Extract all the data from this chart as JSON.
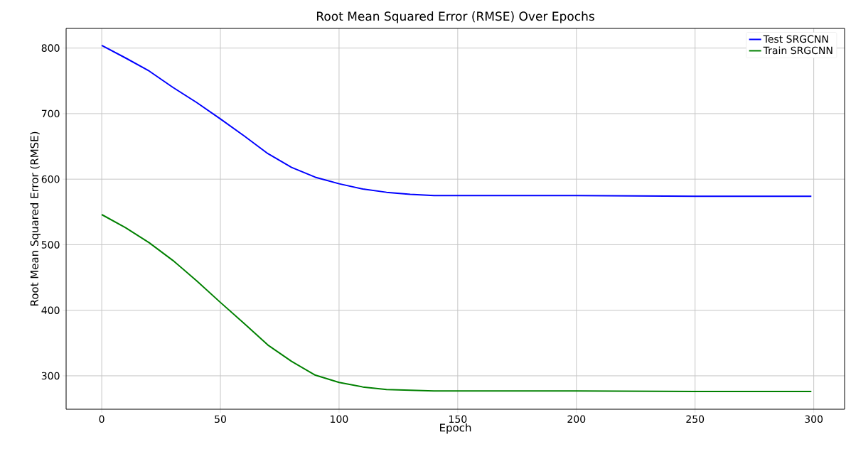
{
  "chart_data": {
    "type": "line",
    "title": "Root Mean Squared Error (RMSE) Over Epochs",
    "xlabel": "Epoch",
    "ylabel": "Root Mean Squared Error (RMSE)",
    "x": [
      0,
      10,
      20,
      30,
      40,
      50,
      60,
      70,
      80,
      90,
      100,
      110,
      120,
      130,
      140,
      150,
      200,
      250,
      299
    ],
    "series": [
      {
        "name": "Test SRGCNN",
        "color": "#0000ff",
        "values": [
          804,
          785,
          765,
          740,
          717,
          692,
          666,
          639,
          618,
          603,
          593,
          585,
          580,
          577,
          575,
          575,
          575,
          574,
          574
        ]
      },
      {
        "name": "Train SRGCNN",
        "color": "#008000",
        "values": [
          546,
          526,
          503,
          476,
          445,
          412,
          380,
          347,
          322,
          301,
          290,
          283,
          279,
          278,
          277,
          277,
          277,
          276,
          276
        ]
      }
    ],
    "xlim": [
      -15,
      313
    ],
    "ylim": [
      249,
      830
    ],
    "xticks": [
      0,
      50,
      100,
      150,
      200,
      250,
      300
    ],
    "yticks": [
      300,
      400,
      500,
      600,
      700,
      800
    ],
    "grid": true,
    "legend": "top right"
  }
}
